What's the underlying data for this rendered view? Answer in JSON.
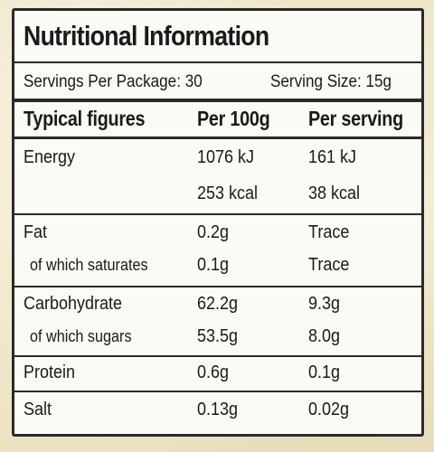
{
  "title": "Nutritional Information",
  "servings": {
    "per_package": "Servings Per Package: 30",
    "serving_size": "Serving Size: 15g"
  },
  "headers": {
    "item": "Typical figures",
    "per_100g": "Per 100g",
    "per_serving": "Per serving"
  },
  "rows": [
    {
      "label": "Energy",
      "per_100g": "1076 kJ",
      "per_serving": "161 kJ"
    },
    {
      "label": "",
      "per_100g": "253 kcal",
      "per_serving": "38 kcal"
    },
    {
      "label": "Fat",
      "per_100g": "0.2g",
      "per_serving": "Trace"
    },
    {
      "label": "of which saturates",
      "per_100g": "0.1g",
      "per_serving": "Trace"
    },
    {
      "label": "Carbohydrate",
      "per_100g": "62.2g",
      "per_serving": "9.3g"
    },
    {
      "label": "of which sugars",
      "per_100g": "53.5g",
      "per_serving": "8.0g"
    },
    {
      "label": "Protein",
      "per_100g": "0.6g",
      "per_serving": "0.1g"
    },
    {
      "label": "Salt",
      "per_100g": "0.13g",
      "per_serving": "0.02g"
    }
  ]
}
